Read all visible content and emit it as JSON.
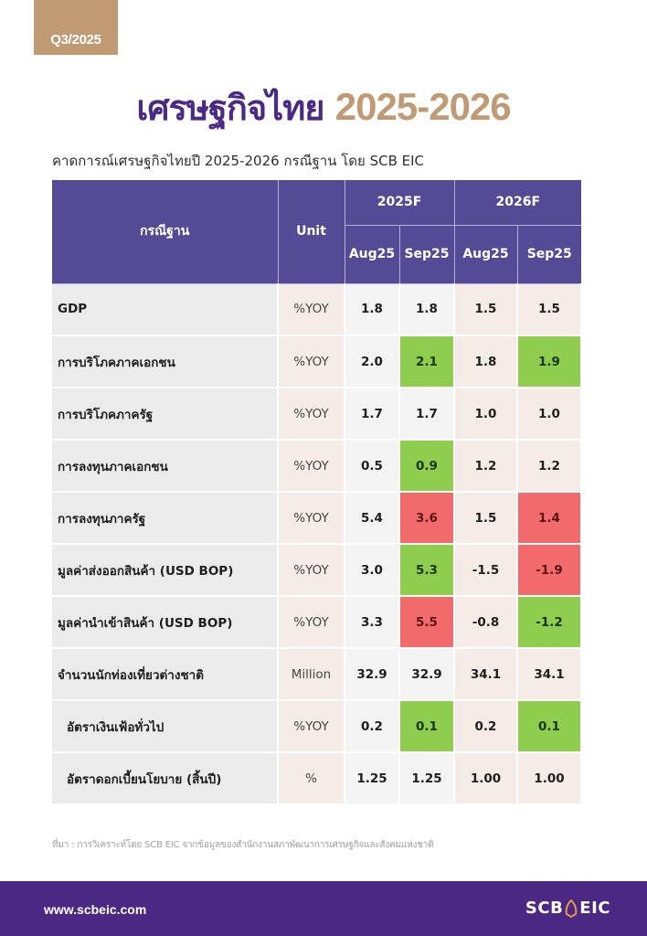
{
  "badge": {
    "label": "Q3/2025"
  },
  "title": {
    "thai": "เศรษฐกิจไทย",
    "years": "2025-2026"
  },
  "subtitle": "คาดการณ์เศรษฐกิจไทยปี 2025-2026 กรณีฐาน โดย SCB EIC",
  "table": {
    "header": {
      "scenario": "กรณีฐาน",
      "unit": "Unit",
      "years": [
        "2025F",
        "2026F"
      ],
      "months": [
        "Aug25",
        "Sep25",
        "Aug25",
        "Sep25"
      ]
    },
    "rows": [
      {
        "label": "GDP",
        "unit": "%YOY",
        "values": [
          "1.8",
          "1.8",
          "1.5",
          "1.5"
        ],
        "changes": [
          "",
          "",
          "",
          ""
        ]
      },
      {
        "label": "การบริโภคภาคเอกชน",
        "unit": "%YOY",
        "values": [
          "2.0",
          "2.1",
          "1.8",
          "1.9"
        ],
        "changes": [
          "",
          "up",
          "",
          "up"
        ]
      },
      {
        "label": "การบริโภคภาครัฐ",
        "unit": "%YOY",
        "values": [
          "1.7",
          "1.7",
          "1.0",
          "1.0"
        ],
        "changes": [
          "",
          "",
          "",
          ""
        ]
      },
      {
        "label": "การลงทุนภาคเอกชน",
        "unit": "%YOY",
        "values": [
          "0.5",
          "0.9",
          "1.2",
          "1.2"
        ],
        "changes": [
          "",
          "up",
          "",
          ""
        ]
      },
      {
        "label": "การลงทุนภาครัฐ",
        "unit": "%YOY",
        "values": [
          "5.4",
          "3.6",
          "1.5",
          "1.4"
        ],
        "changes": [
          "",
          "down",
          "",
          "down"
        ]
      },
      {
        "label": "มูลค่าส่งออกสินค้า (USD BOP)",
        "unit": "%YOY",
        "values": [
          "3.0",
          "5.3",
          "-1.5",
          "-1.9"
        ],
        "changes": [
          "",
          "up",
          "",
          "down"
        ]
      },
      {
        "label": "มูลค่านำเข้าสินค้า (USD BOP)",
        "unit": "%YOY",
        "values": [
          "3.3",
          "5.5",
          "-0.8",
          "-1.2"
        ],
        "changes": [
          "",
          "down",
          "",
          "up"
        ]
      },
      {
        "label": "จำนวนนักท่องเที่ยวต่างชาติ",
        "unit": "Million",
        "values": [
          "32.9",
          "32.9",
          "34.1",
          "34.1"
        ],
        "changes": [
          "",
          "",
          "",
          ""
        ]
      },
      {
        "label": "อัตราเงินเฟ้อทั่วไป",
        "unit": "%YOY",
        "values": [
          "0.2",
          "0.1",
          "0.2",
          "0.1"
        ],
        "changes": [
          "",
          "up",
          "",
          "up"
        ]
      },
      {
        "label": "อัตราดอกเบี้ยนโยบาย (สิ้นปี)",
        "unit": "%",
        "values": [
          "1.25",
          "1.25",
          "1.00",
          "1.00"
        ],
        "changes": [
          "",
          "",
          "",
          ""
        ]
      }
    ]
  },
  "colors": {
    "brand_purple": "#4a2884",
    "header_purple": "#544a96",
    "gold": "#c09a72",
    "upgrade_green": "#8fcd4f",
    "downgrade_red": "#f26a6b"
  },
  "source": "ที่มา : การวิเคราะห์โดย SCB EIC จากข้อมูลของสำนักงานสภาพัฒนาการเศรษฐกิจและสังคมแห่งชาติ",
  "footer": {
    "url": "www.scbeic.com",
    "logo_left": "SCB",
    "logo_right": "EIC",
    "logo_icon": "scb-leaf-icon"
  }
}
